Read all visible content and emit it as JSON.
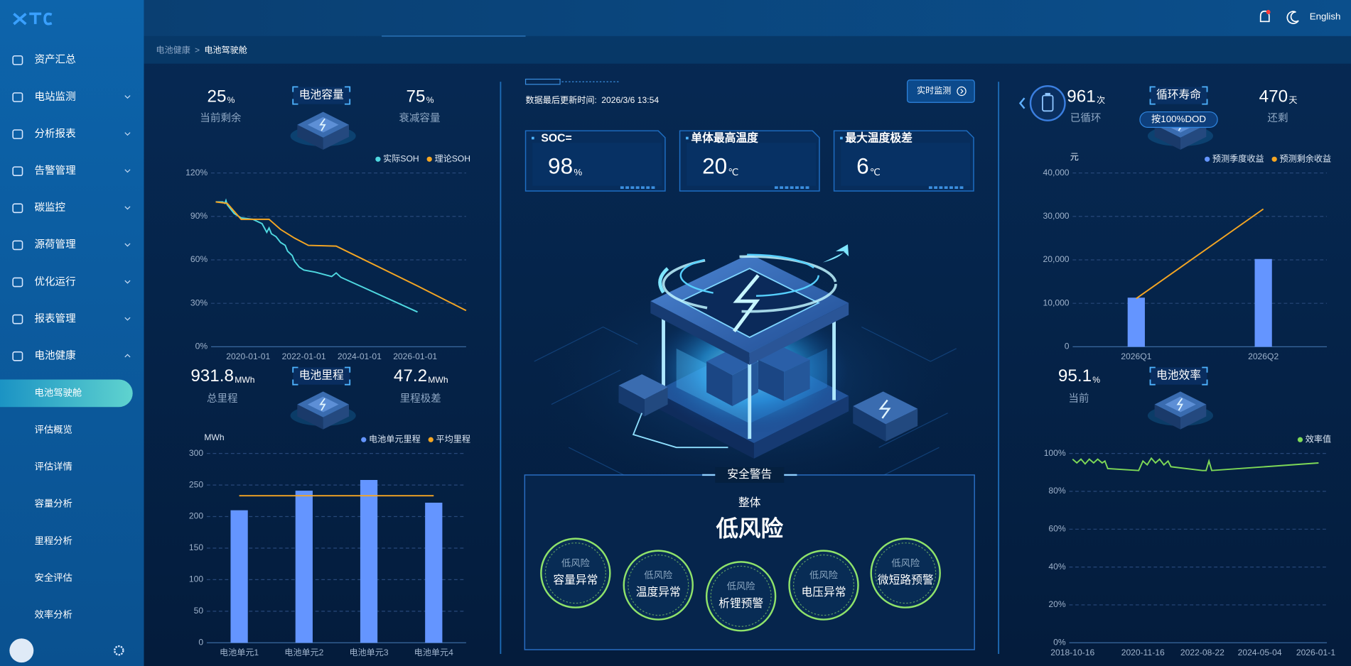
{
  "sidebar": {
    "menu": [
      "资产汇总",
      "电站监测",
      "分析报表",
      "告警管理",
      "碳监控",
      "源荷管理",
      "优化运行",
      "报表管理",
      "电池健康"
    ],
    "submenu": [
      "电池驾驶舱",
      "评估概览",
      "评估详情",
      "容量分析",
      "里程分析",
      "安全评估",
      "效率分析"
    ],
    "active": 0
  },
  "header": {
    "language": "English"
  },
  "breadcrumb": {
    "parent": "电池健康",
    "separator": ">",
    "current": "电池驾驶舱"
  },
  "capacity": {
    "title": "电池容量",
    "left": {
      "value": 25,
      "unit": "%",
      "label": "当前剩余"
    },
    "right": {
      "value": 75,
      "unit": "%",
      "label": "衰减容量"
    }
  },
  "soh_chart": {
    "type": "line",
    "grid": true,
    "legend": "top-right",
    "xlim": [
      "2018-09-01",
      "2027-11-01"
    ],
    "xticks": [
      "2020-01-01",
      "2022-01-01",
      "2024-01-01",
      "2026-01-01"
    ],
    "ylim": [
      0,
      120
    ],
    "yticks": [
      {
        "value": 0,
        "label": "0%"
      },
      {
        "value": 30,
        "label": "30%"
      },
      {
        "value": 60,
        "label": "60%"
      },
      {
        "value": 90,
        "label": "90%"
      },
      {
        "value": 120,
        "label": "120%"
      }
    ],
    "series": [
      {
        "name": "实际SOH",
        "color": "#4fd8e0",
        "x": [
          "2018-11-01",
          "2019-02-01",
          "2019-03-01",
          "2019-03-15",
          "2019-04-01",
          "2019-05-01",
          "2019-07-01",
          "2019-10-01",
          "2020-03-01",
          "2020-07-01",
          "2020-09-01",
          "2020-10-01",
          "2020-11-01",
          "2021-01-01",
          "2021-03-01",
          "2021-05-01",
          "2021-06-01",
          "2021-08-01",
          "2021-09-01",
          "2021-11-01",
          "2022-01-01",
          "2022-06-01",
          "2023-01-01",
          "2023-03-01",
          "2023-05-01",
          "2026-02-01"
        ],
        "values": [
          100,
          100,
          99,
          101,
          98,
          96,
          92,
          89,
          88,
          85,
          79,
          82,
          78,
          76,
          72,
          70,
          66,
          63,
          59,
          55,
          53,
          51.5,
          48.5,
          51,
          48,
          24
        ]
      },
      {
        "name": "理论SOH",
        "color": "#f5a623",
        "x": [
          "2018-11-01",
          "2019-04-01",
          "2019-10-01",
          "2020-10-01",
          "2021-03-01",
          "2021-09-01",
          "2022-03-01",
          "2023-03-01",
          "2026-02-01",
          "2027-11-01"
        ],
        "values": [
          100,
          99,
          88,
          88,
          81,
          75,
          70,
          69.5,
          42,
          25
        ]
      }
    ]
  },
  "mileage": {
    "title": "电池里程",
    "left": {
      "value": 931.8,
      "unit": "MWh",
      "label": "总里程"
    },
    "right": {
      "value": 47.2,
      "unit": "MWh",
      "label": "里程极差"
    }
  },
  "mileage_chart": {
    "type": "bar",
    "grid": true,
    "legend": "top-right",
    "y_label": "MWh",
    "categories": [
      "电池单元1",
      "电池单元2",
      "电池单元3",
      "电池单元4"
    ],
    "ylim": [
      0,
      300
    ],
    "yticks": [
      0,
      50,
      100,
      150,
      200,
      250,
      300
    ],
    "series": [
      {
        "name": "电池单元里程",
        "color": "#6495ff",
        "type": "bar",
        "values": [
          210,
          241,
          258,
          222
        ]
      },
      {
        "name": "平均里程",
        "color": "#f5a623",
        "type": "line",
        "values": [
          233,
          233,
          233,
          233
        ]
      }
    ]
  },
  "status": {
    "update_label": "数据最后更新时间:",
    "update_time": "2026/3/6 13:54",
    "button": "实时监测"
  },
  "cards": [
    {
      "title": "SOC=",
      "value": 98,
      "unit": "%"
    },
    {
      "title": "单体最高温度",
      "value": 20,
      "unit": "℃"
    },
    {
      "title": "最大温度极差",
      "value": 6,
      "unit": "℃"
    }
  ],
  "safety": {
    "title": "安全警告",
    "overall_label": "整体",
    "overall": "低风险",
    "items": [
      {
        "level": "低风险",
        "name": "容量异常"
      },
      {
        "level": "低风险",
        "name": "温度异常"
      },
      {
        "level": "低风险",
        "name": "析锂预警"
      },
      {
        "level": "低风险",
        "name": "电压异常"
      },
      {
        "level": "低风险",
        "name": "微短路预警"
      }
    ]
  },
  "cycle": {
    "title": "循环寿命",
    "note": "按100%DOD",
    "left": {
      "value": 961,
      "unit": "次",
      "label": "已循环"
    },
    "right": {
      "value": 470,
      "unit": "天",
      "label": "还剩"
    }
  },
  "revenue_chart": {
    "type": "bar",
    "grid": true,
    "legend": "top-right",
    "y_label": "元",
    "categories": [
      "2026Q1",
      "2026Q2"
    ],
    "ylim": [
      0,
      40000
    ],
    "yticks": [
      0,
      {
        "value": 10000,
        "label": "10,000"
      },
      {
        "value": 20000,
        "label": "20,000"
      },
      {
        "value": 30000,
        "label": "30,000"
      },
      {
        "value": 40000,
        "label": "40,000"
      }
    ],
    "series": [
      {
        "name": "预测季度收益",
        "color": "#6495ff",
        "type": "bar",
        "values": [
          11300,
          20200
        ]
      },
      {
        "name": "预测剩余收益",
        "color": "#f5a623",
        "type": "line",
        "values": [
          11100,
          31700
        ]
      }
    ]
  },
  "efficiency": {
    "title": "电池效率",
    "left": {
      "value": 95.1,
      "unit": "%",
      "label": "当前"
    }
  },
  "efficiency_chart": {
    "type": "line",
    "grid": true,
    "legend": "top-right",
    "xlim": [
      "2018-09-10",
      "2026-05-01"
    ],
    "xticks": [
      "2018-10-16",
      "2020-11-16",
      "2022-08-22",
      "2024-05-04",
      "2026-01-1"
    ],
    "ylim": [
      0,
      100
    ],
    "yticks": [
      {
        "value": 0,
        "label": "0%"
      },
      {
        "value": 20,
        "label": "20%"
      },
      {
        "value": 40,
        "label": "40%"
      },
      {
        "value": 60,
        "label": "60%"
      },
      {
        "value": 80,
        "label": "80%"
      },
      {
        "value": 100,
        "label": "100%"
      }
    ],
    "series": [
      {
        "name": "效率值",
        "color": "#7ed957",
        "x": [
          "2018-10-16",
          "2018-12-01",
          "2019-01-15",
          "2019-03-01",
          "2019-04-15",
          "2019-06-01",
          "2019-07-15",
          "2019-09-01",
          "2019-10-01",
          "2019-11-01",
          "2020-10-01",
          "2020-11-16",
          "2021-01-01",
          "2021-02-15",
          "2021-04-01",
          "2021-05-15",
          "2021-07-01",
          "2021-08-15",
          "2021-09-15",
          "2022-08-22",
          "2022-10-01",
          "2022-11-01",
          "2022-12-01",
          "2026-01-31"
        ],
        "values": [
          97,
          95,
          97,
          94.5,
          97,
          95,
          97,
          95,
          96,
          92,
          91,
          96,
          94,
          97.5,
          95,
          97,
          94,
          96,
          93,
          91,
          91,
          96,
          91,
          95
        ]
      }
    ]
  }
}
